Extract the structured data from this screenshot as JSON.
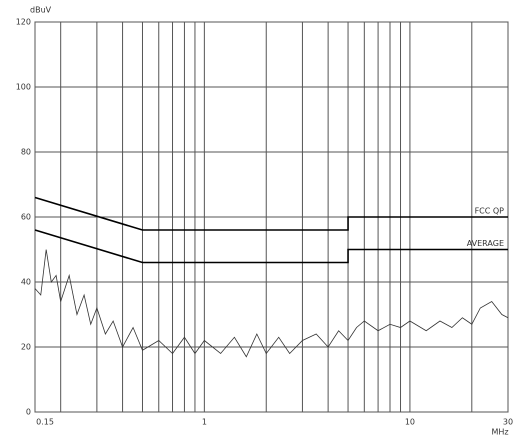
{
  "chart_data": {
    "type": "line",
    "y_label": "dBuV",
    "x_label": "MHz",
    "log_x": true,
    "xlim": [
      0.15,
      30
    ],
    "xticks": [
      0.15,
      1,
      10,
      30
    ],
    "xminor": [
      0.2,
      0.3,
      0.4,
      0.5,
      0.6,
      0.7,
      0.8,
      0.9,
      2,
      3,
      4,
      5,
      6,
      7,
      8,
      9,
      20
    ],
    "ylim": [
      0,
      120
    ],
    "yticks": [
      0,
      20,
      40,
      60,
      80,
      100,
      120
    ],
    "grid": true,
    "series": [
      {
        "name": "FCC QP",
        "color": "#000000",
        "x": [
          0.15,
          0.5,
          5,
          5,
          30
        ],
        "values": [
          66,
          56,
          56,
          60,
          60
        ]
      },
      {
        "name": "AVERAGE",
        "color": "#000000",
        "x": [
          0.15,
          0.5,
          5,
          5,
          30
        ],
        "values": [
          56,
          46,
          46,
          50,
          50
        ]
      },
      {
        "color": "#333333",
        "x": [
          0.15,
          0.16,
          0.17,
          0.18,
          0.19,
          0.2,
          0.22,
          0.24,
          0.26,
          0.28,
          0.3,
          0.33,
          0.36,
          0.4,
          0.45,
          0.5,
          0.6,
          0.7,
          0.8,
          0.9,
          1,
          1.2,
          1.4,
          1.6,
          1.8,
          2,
          2.3,
          2.6,
          3,
          3.5,
          4,
          4.5,
          5,
          5.5,
          6,
          7,
          8,
          9,
          10,
          12,
          14,
          16,
          18,
          20,
          22,
          25,
          28,
          30
        ],
        "values": [
          38,
          36,
          50,
          40,
          42,
          34,
          42,
          30,
          36,
          27,
          32,
          24,
          28,
          20,
          26,
          19,
          22,
          18,
          23,
          18,
          22,
          18,
          23,
          17,
          24,
          18,
          23,
          18,
          22,
          24,
          20,
          25,
          22,
          26,
          28,
          25,
          27,
          26,
          28,
          25,
          28,
          26,
          29,
          27,
          32,
          34,
          30,
          29
        ]
      }
    ]
  }
}
